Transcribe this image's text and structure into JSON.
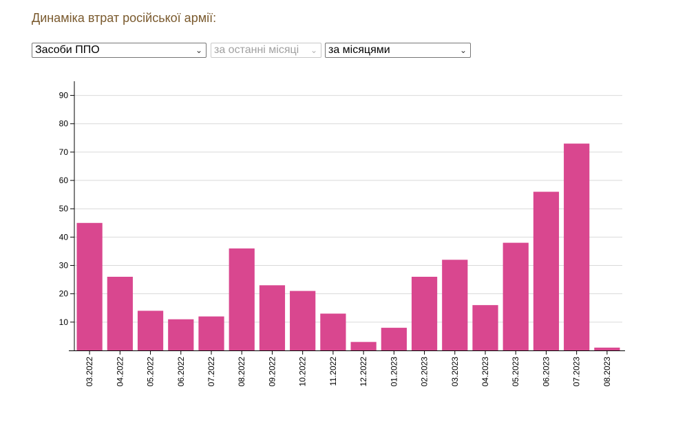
{
  "header": {
    "title": "Динаміка втрат російської армії:"
  },
  "controls": {
    "type_select": {
      "value": "Засоби ППО"
    },
    "period_select": {
      "value": "за останні місяці"
    },
    "group_select": {
      "value": "за місяцями"
    }
  },
  "colors": {
    "bar": "#d9478f",
    "grid": "#d9d9d9",
    "axis": "#000000"
  },
  "icons": {
    "dropdown": "chevron-down-icon"
  },
  "chart_data": {
    "type": "bar",
    "categories": [
      "03.2022",
      "04.2022",
      "05.2022",
      "06.2022",
      "07.2022",
      "08.2022",
      "09.2022",
      "10.2022",
      "11.2022",
      "12.2022",
      "01.2023",
      "02.2023",
      "03.2023",
      "04.2023",
      "05.2023",
      "06.2023",
      "07.2023",
      "08.2023"
    ],
    "values": [
      45,
      26,
      14,
      11,
      12,
      36,
      23,
      21,
      13,
      3,
      8,
      26,
      32,
      16,
      38,
      56,
      73,
      1
    ],
    "yticks": [
      10,
      20,
      30,
      40,
      50,
      60,
      70,
      80,
      90
    ],
    "ylim": [
      0,
      95
    ],
    "grid": true,
    "legend": false
  }
}
